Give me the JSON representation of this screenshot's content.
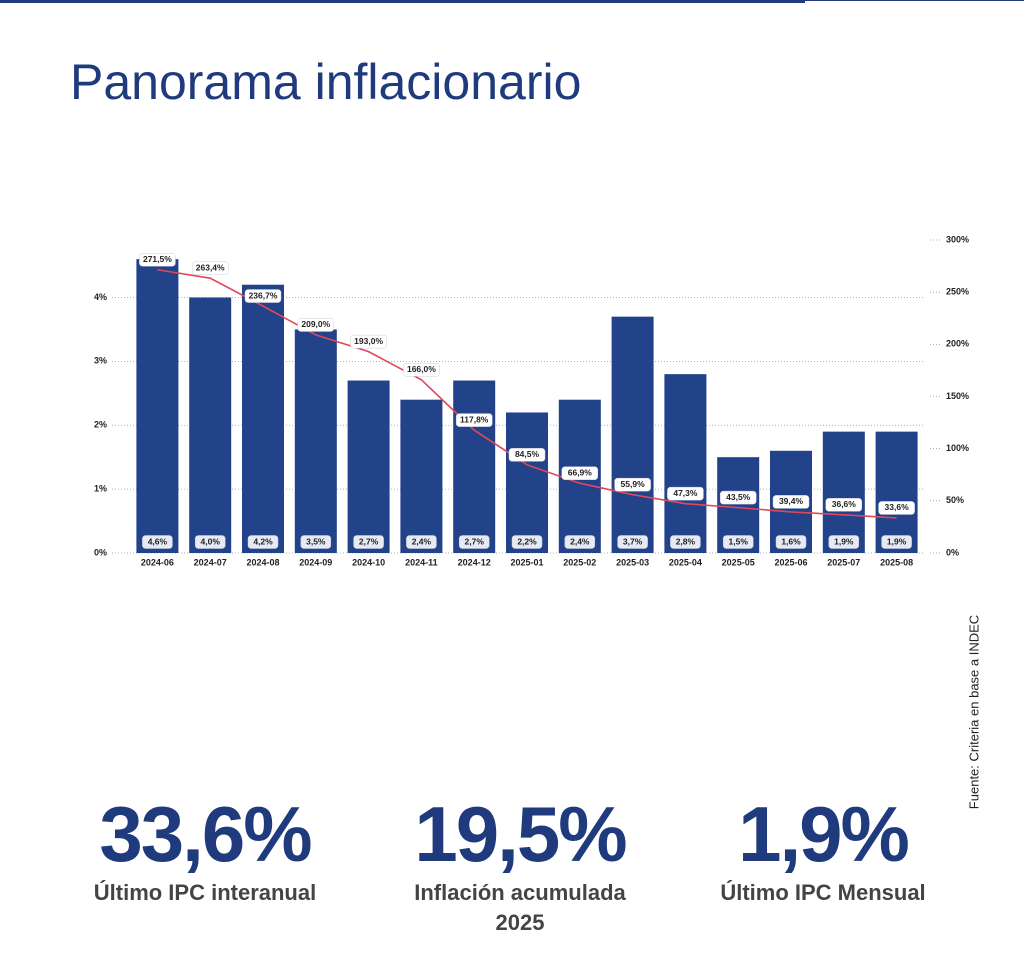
{
  "chart_data": {
    "type": "bar",
    "title": "Panorama inflacionario",
    "categories": [
      "2024-06",
      "2024-07",
      "2024-08",
      "2024-09",
      "2024-10",
      "2024-11",
      "2024-12",
      "2025-01",
      "2025-02",
      "2025-03",
      "2025-04",
      "2025-05",
      "2025-06",
      "2025-07",
      "2025-08"
    ],
    "series": [
      {
        "type": "bar",
        "axis": "y",
        "color": "#22428a",
        "values": [
          4.6,
          4.0,
          4.2,
          3.5,
          2.7,
          2.4,
          2.7,
          2.2,
          2.4,
          3.7,
          2.8,
          1.5,
          1.6,
          1.9,
          1.9
        ],
        "value_labels": [
          "4,6%",
          "4,0%",
          "4,2%",
          "3,5%",
          "2,7%",
          "2,4%",
          "2,7%",
          "2,2%",
          "2,4%",
          "3,7%",
          "2,8%",
          "1,5%",
          "1,6%",
          "1,9%",
          "1,9%"
        ]
      },
      {
        "type": "line",
        "axis": "y2",
        "color": "#e0485a",
        "values": [
          271.5,
          263.4,
          236.7,
          209.0,
          193.0,
          166.0,
          117.8,
          84.5,
          66.9,
          55.9,
          47.3,
          43.5,
          39.4,
          36.6,
          33.6
        ],
        "value_labels": [
          "271,5%",
          "263,4%",
          "236,7%",
          "209,0%",
          "193,0%",
          "166,0%",
          "117,8%",
          "84,5%",
          "66,9%",
          "55,9%",
          "47,3%",
          "43,5%",
          "39,4%",
          "36,6%",
          "33,6%"
        ]
      }
    ],
    "ylim": [
      0,
      4.9
    ],
    "yticks": [
      {
        "value": 0,
        "label": "0%"
      },
      {
        "value": 1,
        "label": "1%"
      },
      {
        "value": 2,
        "label": "2%"
      },
      {
        "value": 3,
        "label": "3%"
      },
      {
        "value": 4,
        "label": "4%"
      }
    ],
    "y2lim": [
      0,
      300
    ],
    "y2ticks": [
      {
        "value": 0,
        "label": "0%"
      },
      {
        "value": 50,
        "label": "50%"
      },
      {
        "value": 100,
        "label": "100%"
      },
      {
        "value": 150,
        "label": "150%"
      },
      {
        "value": 200,
        "label": "200%"
      },
      {
        "value": 250,
        "label": "250%"
      },
      {
        "value": 300,
        "label": "300%"
      }
    ],
    "grid": true,
    "source": "Fuente: Criteria en base a INDEC"
  },
  "kpis": [
    {
      "value": "33,6%",
      "label": "Último IPC interanual"
    },
    {
      "value": "19,5%",
      "label": "Inflación acumulada 2025"
    },
    {
      "value": "1,9%",
      "label": "Último IPC Mensual"
    }
  ]
}
